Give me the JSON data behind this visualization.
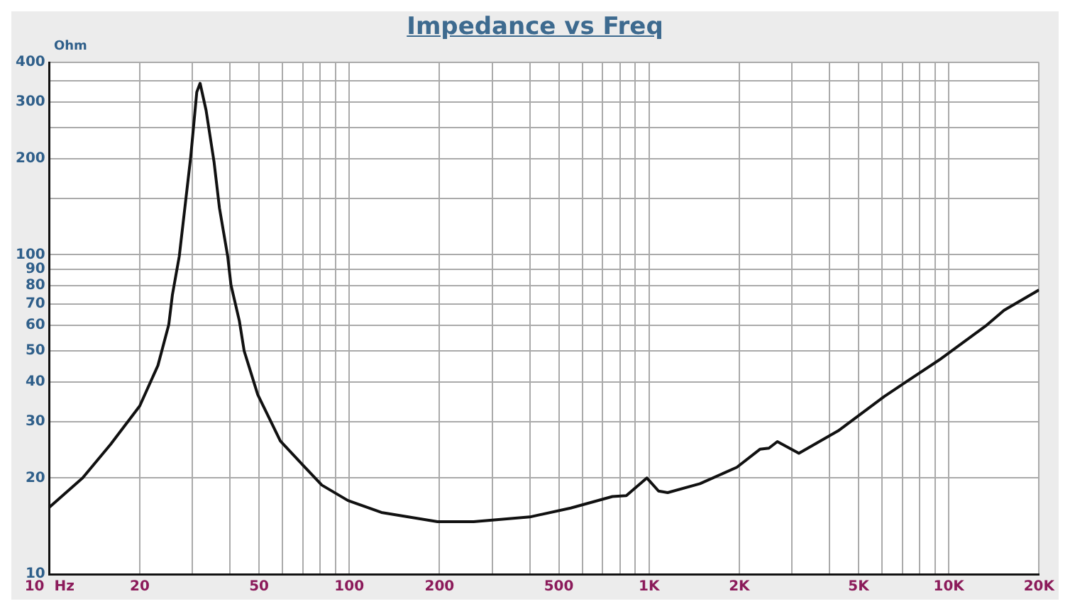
{
  "chart_data": {
    "type": "line",
    "title": "Impedance vs Freq",
    "ylabel": "Ohm",
    "log": "xy",
    "grid": true,
    "marker": "none",
    "legend": false,
    "xlim": [
      10,
      20000
    ],
    "ylim": [
      10,
      400
    ],
    "xticks": [
      {
        "value": 10,
        "label": "10  Hz"
      },
      20,
      {
        "value": 30,
        "label": null
      },
      {
        "value": 40,
        "label": null
      },
      50,
      {
        "value": 60,
        "label": null
      },
      {
        "value": 70,
        "label": null
      },
      {
        "value": 80,
        "label": null
      },
      {
        "value": 90,
        "label": null
      },
      100,
      200,
      {
        "value": 300,
        "label": null
      },
      {
        "value": 400,
        "label": null
      },
      500,
      {
        "value": 600,
        "label": null
      },
      {
        "value": 700,
        "label": null
      },
      {
        "value": 800,
        "label": null
      },
      {
        "value": 900,
        "label": null
      },
      {
        "value": 1000,
        "label": "1K"
      },
      {
        "value": 2000,
        "label": "2K"
      },
      {
        "value": 3000,
        "label": null
      },
      {
        "value": 4000,
        "label": null
      },
      {
        "value": 5000,
        "label": "5K"
      },
      {
        "value": 6000,
        "label": null
      },
      {
        "value": 7000,
        "label": null
      },
      {
        "value": 8000,
        "label": null
      },
      {
        "value": 9000,
        "label": null
      },
      {
        "value": 10000,
        "label": "10K"
      },
      {
        "value": 20000,
        "label": "20K"
      }
    ],
    "yticks": [
      10,
      20,
      30,
      40,
      50,
      60,
      70,
      80,
      90,
      100,
      {
        "value": 150,
        "label": null
      },
      200,
      {
        "value": 250,
        "label": null
      },
      300,
      {
        "value": 350,
        "label": null
      },
      400
    ],
    "series": [
      {
        "color": "#111111",
        "x": [
          10,
          12.9,
          16,
          20,
          23,
          25,
          25.7,
          27.1,
          29.6,
          31,
          31.8,
          33.3,
          35.4,
          36.9,
          39.3,
          40.3,
          43,
          44.6,
          49.5,
          58.9,
          70.2,
          81,
          99,
          128,
          197,
          260,
          400,
          548,
          755,
          840,
          984,
          1076,
          1154,
          1479,
          1963,
          2344,
          2512,
          2680,
          3162,
          4276,
          6091,
          9310,
          13270,
          15290,
          20000
        ],
        "values": [
          16.2,
          20,
          25.5,
          33.6,
          45,
          60.4,
          74.8,
          98.9,
          203,
          323,
          344,
          283,
          195,
          140,
          99,
          80.5,
          62,
          50,
          36.5,
          26.1,
          21.9,
          19,
          17,
          15.6,
          14.6,
          14.6,
          15.1,
          16.1,
          17.5,
          17.6,
          20,
          18.2,
          18,
          19.2,
          21.6,
          24.6,
          24.8,
          26,
          23.9,
          28.1,
          36,
          46.9,
          59.8,
          67,
          77.6
        ]
      }
    ]
  }
}
